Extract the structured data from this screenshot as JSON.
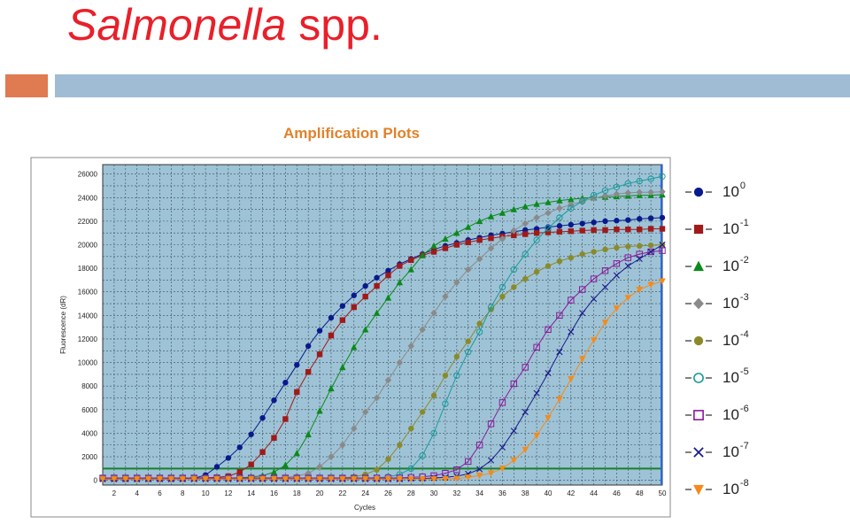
{
  "title_main": "Salmonella",
  "title_rest": " spp.",
  "chart_data": {
    "type": "line",
    "title": "Amplification Plots",
    "xlabel": "Cycles",
    "ylabel": "Fluorescence (dR)",
    "xlim": [
      1,
      50
    ],
    "ylim": [
      -400,
      26800
    ],
    "x_ticks": [
      2,
      4,
      6,
      8,
      10,
      12,
      14,
      16,
      18,
      20,
      22,
      24,
      26,
      28,
      30,
      32,
      34,
      36,
      38,
      40,
      42,
      44,
      46,
      48,
      50
    ],
    "y_ticks": [
      0,
      2000,
      4000,
      6000,
      8000,
      10000,
      12000,
      14000,
      16000,
      18000,
      20000,
      22000,
      24000,
      26000
    ],
    "threshold": 1000,
    "threshold_color": "#1a7f2a",
    "plot_bg": "#9ec3d6",
    "grid": true,
    "legend_position": "right",
    "series": [
      {
        "name": "10",
        "exponent": "0",
        "marker": "circle",
        "color": "#0a1a8c",
        "x": [
          1,
          2,
          3,
          4,
          5,
          6,
          7,
          8,
          9,
          10,
          11,
          12,
          13,
          14,
          15,
          16,
          17,
          18,
          19,
          20,
          21,
          22,
          23,
          24,
          25,
          26,
          27,
          28,
          29,
          30,
          31,
          32,
          33,
          34,
          35,
          36,
          37,
          38,
          39,
          40,
          41,
          42,
          43,
          44,
          45,
          46,
          47,
          48,
          49,
          50
        ],
        "y": [
          100,
          100,
          100,
          100,
          100,
          100,
          100,
          120,
          180,
          450,
          1150,
          1900,
          2800,
          3900,
          5300,
          6800,
          8300,
          9800,
          11400,
          12700,
          13800,
          14800,
          15700,
          16500,
          17200,
          17800,
          18350,
          18800,
          19200,
          19600,
          19900,
          20150,
          20400,
          20600,
          20800,
          20950,
          21100,
          21250,
          21350,
          21500,
          21600,
          21700,
          21800,
          21900,
          22000,
          22050,
          22100,
          22200,
          22250,
          22300
        ]
      },
      {
        "name": "10",
        "exponent": "-1",
        "marker": "square",
        "color": "#a01a1a",
        "x": [
          1,
          2,
          3,
          4,
          5,
          6,
          7,
          8,
          9,
          10,
          11,
          12,
          13,
          14,
          15,
          16,
          17,
          18,
          19,
          20,
          21,
          22,
          23,
          24,
          25,
          26,
          27,
          28,
          29,
          30,
          31,
          32,
          33,
          34,
          35,
          36,
          37,
          38,
          39,
          40,
          41,
          42,
          43,
          44,
          45,
          46,
          47,
          48,
          49,
          50
        ],
        "y": [
          200,
          200,
          200,
          200,
          200,
          200,
          200,
          200,
          200,
          220,
          250,
          350,
          700,
          1350,
          2400,
          3600,
          5200,
          7500,
          9200,
          10700,
          12300,
          13600,
          14700,
          15600,
          16500,
          17400,
          18200,
          18700,
          19100,
          19400,
          19700,
          20000,
          20200,
          20400,
          20550,
          20700,
          20800,
          20900,
          21000,
          21050,
          21100,
          21150,
          21200,
          21250,
          21250,
          21300,
          21300,
          21300,
          21350,
          21350
        ]
      },
      {
        "name": "10",
        "exponent": "-2",
        "marker": "triangle",
        "color": "#0a8a1a",
        "x": [
          1,
          2,
          3,
          4,
          5,
          6,
          7,
          8,
          9,
          10,
          11,
          12,
          13,
          14,
          15,
          16,
          17,
          18,
          19,
          20,
          21,
          22,
          23,
          24,
          25,
          26,
          27,
          28,
          29,
          30,
          31,
          32,
          33,
          34,
          35,
          36,
          37,
          38,
          39,
          40,
          41,
          42,
          43,
          44,
          45,
          46,
          47,
          48,
          49,
          50
        ],
        "y": [
          200,
          200,
          200,
          200,
          200,
          200,
          200,
          200,
          200,
          200,
          200,
          200,
          220,
          280,
          400,
          700,
          1300,
          2300,
          3900,
          5900,
          7800,
          9600,
          11300,
          12800,
          14200,
          15500,
          16800,
          17900,
          19100,
          19900,
          20500,
          21000,
          21500,
          22000,
          22400,
          22700,
          23000,
          23250,
          23450,
          23600,
          23750,
          23850,
          23950,
          24000,
          24050,
          24100,
          24150,
          24200,
          24200,
          24250
        ]
      },
      {
        "name": "10",
        "exponent": "-3",
        "marker": "diamond",
        "color": "#8a8a8a",
        "x": [
          1,
          2,
          3,
          4,
          5,
          6,
          7,
          8,
          9,
          10,
          11,
          12,
          13,
          14,
          15,
          16,
          17,
          18,
          19,
          20,
          21,
          22,
          23,
          24,
          25,
          26,
          27,
          28,
          29,
          30,
          31,
          32,
          33,
          34,
          35,
          36,
          37,
          38,
          39,
          40,
          41,
          42,
          43,
          44,
          45,
          46,
          47,
          48,
          49,
          50
        ],
        "y": [
          200,
          200,
          200,
          200,
          200,
          200,
          200,
          200,
          200,
          200,
          200,
          200,
          200,
          200,
          200,
          220,
          260,
          350,
          600,
          1150,
          2000,
          3000,
          4400,
          5800,
          7000,
          8500,
          10000,
          11400,
          12800,
          14200,
          15600,
          16800,
          17900,
          18800,
          19700,
          20500,
          21200,
          21800,
          22300,
          22700,
          23100,
          23400,
          23700,
          23950,
          24150,
          24300,
          24400,
          24450,
          24450,
          24500
        ]
      },
      {
        "name": "10",
        "exponent": "-4",
        "marker": "circle",
        "color": "#8a8a2a",
        "x": [
          1,
          2,
          3,
          4,
          5,
          6,
          7,
          8,
          9,
          10,
          11,
          12,
          13,
          14,
          15,
          16,
          17,
          18,
          19,
          20,
          21,
          22,
          23,
          24,
          25,
          26,
          27,
          28,
          29,
          30,
          31,
          32,
          33,
          34,
          35,
          36,
          37,
          38,
          39,
          40,
          41,
          42,
          43,
          44,
          45,
          46,
          47,
          48,
          49,
          50
        ],
        "y": [
          200,
          200,
          200,
          200,
          200,
          200,
          200,
          200,
          200,
          200,
          200,
          200,
          200,
          200,
          200,
          200,
          200,
          200,
          200,
          200,
          200,
          220,
          300,
          500,
          900,
          1800,
          3000,
          4400,
          5800,
          7200,
          8900,
          10500,
          11800,
          13300,
          14500,
          15600,
          16400,
          17100,
          17700,
          18200,
          18600,
          18900,
          19200,
          19400,
          19600,
          19750,
          19850,
          19900,
          19950,
          20000
        ]
      },
      {
        "name": "10",
        "exponent": "-5",
        "marker": "circle-open",
        "color": "#1a9a9a",
        "x": [
          1,
          2,
          3,
          4,
          5,
          6,
          7,
          8,
          9,
          10,
          11,
          12,
          13,
          14,
          15,
          16,
          17,
          18,
          19,
          20,
          21,
          22,
          23,
          24,
          25,
          26,
          27,
          28,
          29,
          30,
          31,
          32,
          33,
          34,
          35,
          36,
          37,
          38,
          39,
          40,
          41,
          42,
          43,
          44,
          45,
          46,
          47,
          48,
          49,
          50
        ],
        "y": [
          200,
          200,
          200,
          200,
          200,
          200,
          200,
          200,
          200,
          200,
          200,
          200,
          200,
          200,
          200,
          200,
          200,
          200,
          200,
          200,
          200,
          200,
          200,
          200,
          220,
          300,
          500,
          1000,
          2100,
          4000,
          6500,
          8900,
          10900,
          12600,
          14700,
          16400,
          17900,
          19200,
          20400,
          21400,
          22300,
          23100,
          23700,
          24200,
          24600,
          24900,
          25200,
          25400,
          25600,
          25800
        ]
      },
      {
        "name": "10",
        "exponent": "-6",
        "marker": "square-open",
        "color": "#8a1a9a",
        "x": [
          1,
          2,
          3,
          4,
          5,
          6,
          7,
          8,
          9,
          10,
          11,
          12,
          13,
          14,
          15,
          16,
          17,
          18,
          19,
          20,
          21,
          22,
          23,
          24,
          25,
          26,
          27,
          28,
          29,
          30,
          31,
          32,
          33,
          34,
          35,
          36,
          37,
          38,
          39,
          40,
          41,
          42,
          43,
          44,
          45,
          46,
          47,
          48,
          49,
          50
        ],
        "y": [
          200,
          200,
          200,
          200,
          200,
          200,
          200,
          200,
          200,
          200,
          200,
          200,
          200,
          200,
          200,
          200,
          200,
          200,
          200,
          200,
          200,
          200,
          200,
          200,
          200,
          200,
          200,
          250,
          300,
          400,
          600,
          900,
          1600,
          3000,
          4800,
          6600,
          8200,
          9600,
          11300,
          12800,
          14000,
          15300,
          16200,
          17100,
          17800,
          18400,
          18900,
          19200,
          19400,
          19500
        ]
      },
      {
        "name": "10",
        "exponent": "-7",
        "marker": "cross",
        "color": "#1a1a8a",
        "x": [
          1,
          2,
          3,
          4,
          5,
          6,
          7,
          8,
          9,
          10,
          11,
          12,
          13,
          14,
          15,
          16,
          17,
          18,
          19,
          20,
          21,
          22,
          23,
          24,
          25,
          26,
          27,
          28,
          29,
          30,
          31,
          32,
          33,
          34,
          35,
          36,
          37,
          38,
          39,
          40,
          41,
          42,
          43,
          44,
          45,
          46,
          47,
          48,
          49,
          50
        ],
        "y": [
          100,
          100,
          100,
          100,
          100,
          100,
          100,
          100,
          100,
          100,
          100,
          100,
          100,
          100,
          100,
          100,
          100,
          100,
          100,
          100,
          100,
          100,
          100,
          100,
          100,
          100,
          100,
          150,
          150,
          200,
          250,
          350,
          550,
          950,
          1700,
          2800,
          4200,
          5800,
          7400,
          9100,
          10900,
          12600,
          14200,
          15400,
          16400,
          17400,
          18200,
          18800,
          19400,
          20000
        ]
      },
      {
        "name": "10",
        "exponent": "-8",
        "marker": "triangle-down",
        "color": "#f58a1a",
        "x": [
          1,
          2,
          3,
          4,
          5,
          6,
          7,
          8,
          9,
          10,
          11,
          12,
          13,
          14,
          15,
          16,
          17,
          18,
          19,
          20,
          21,
          22,
          23,
          24,
          25,
          26,
          27,
          28,
          29,
          30,
          31,
          32,
          33,
          34,
          35,
          36,
          37,
          38,
          39,
          40,
          41,
          42,
          43,
          44,
          45,
          46,
          47,
          48,
          49,
          50
        ],
        "y": [
          100,
          100,
          100,
          100,
          100,
          100,
          100,
          100,
          100,
          100,
          100,
          100,
          100,
          100,
          100,
          100,
          100,
          100,
          100,
          100,
          100,
          100,
          100,
          100,
          100,
          100,
          100,
          100,
          100,
          100,
          120,
          150,
          250,
          400,
          600,
          1000,
          1700,
          2600,
          3800,
          5300,
          6900,
          8600,
          10300,
          11900,
          13400,
          14600,
          15500,
          16200,
          16600,
          16900
        ]
      }
    ]
  }
}
